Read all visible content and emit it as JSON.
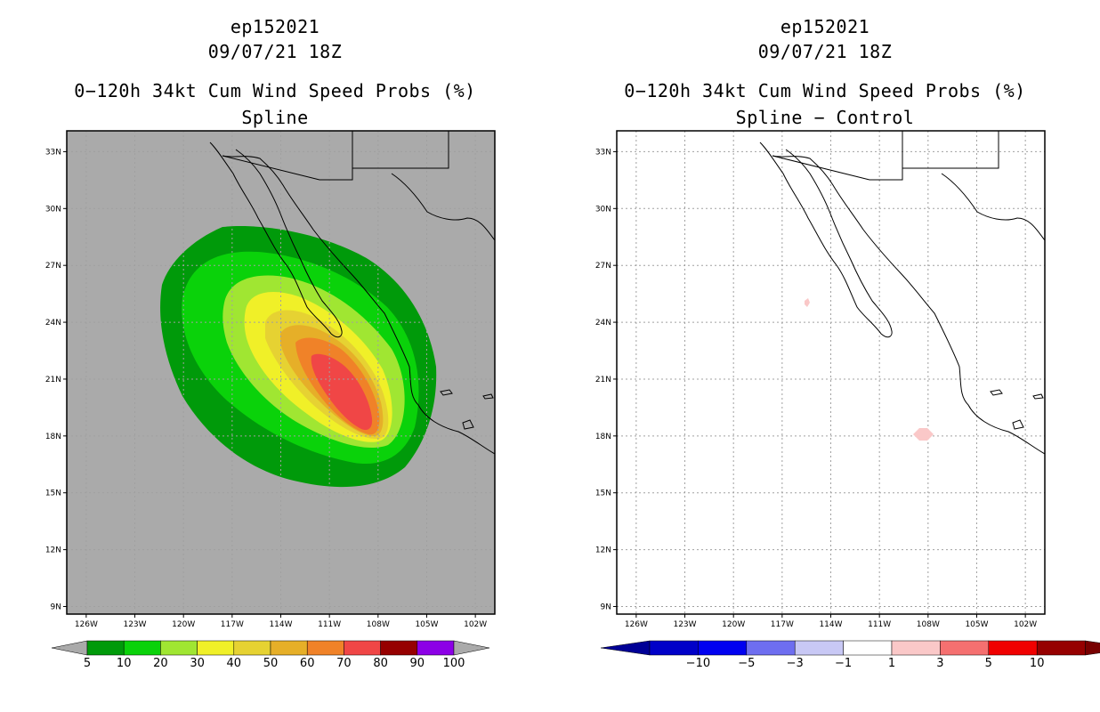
{
  "left_panel": {
    "title_id": "ep152021",
    "title_time": "09/07/21 18Z",
    "title_product": "0−120h 34kt Cum Wind Speed Probs (%)",
    "subtitle": "Spline",
    "legend": {
      "labels": [
        "5",
        "10",
        "20",
        "30",
        "40",
        "50",
        "60",
        "70",
        "80",
        "90",
        "100"
      ],
      "colors": [
        "#009a0a",
        "#0ad20a",
        "#a0e632",
        "#f0f028",
        "#e6d232",
        "#e6af28",
        "#f08228",
        "#f04646",
        "#960000",
        "#8c00e6"
      ],
      "under_color": "#aaaaaa",
      "over_color": "#aaaaaa"
    },
    "background_color": "#aaaaaa"
  },
  "right_panel": {
    "title_id": "ep152021",
    "title_time": "09/07/21 18Z",
    "title_product": "0−120h 34kt Cum Wind Speed Probs (%)",
    "subtitle": "Spline − Control",
    "legend": {
      "labels": [
        "−10",
        "−5",
        "−3",
        "−1",
        "1",
        "3",
        "5",
        "10"
      ],
      "colors": [
        "#0000c8",
        "#0000f0",
        "#6e6ef0",
        "#c8c8f5",
        "#ffffff",
        "#fac8c8",
        "#f57070",
        "#f00000",
        "#960000"
      ],
      "under_color": "#000096",
      "over_color": "#780000"
    }
  },
  "axes": {
    "lat_labels": [
      "33N",
      "30N",
      "27N",
      "24N",
      "21N",
      "18N",
      "15N",
      "12N",
      "9N"
    ],
    "lon_labels": [
      "126W",
      "123W",
      "120W",
      "117W",
      "114W",
      "111W",
      "108W",
      "105W",
      "102W"
    ],
    "lat_values": [
      33,
      30,
      27,
      24,
      21,
      18,
      15,
      12,
      9
    ],
    "lon_values": [
      -126,
      -123,
      -120,
      -117,
      -114,
      -111,
      -108,
      -105,
      -102
    ],
    "lon_range": [
      -127.2,
      -100.8
    ],
    "lat_range": [
      8.6,
      34.1
    ]
  }
}
